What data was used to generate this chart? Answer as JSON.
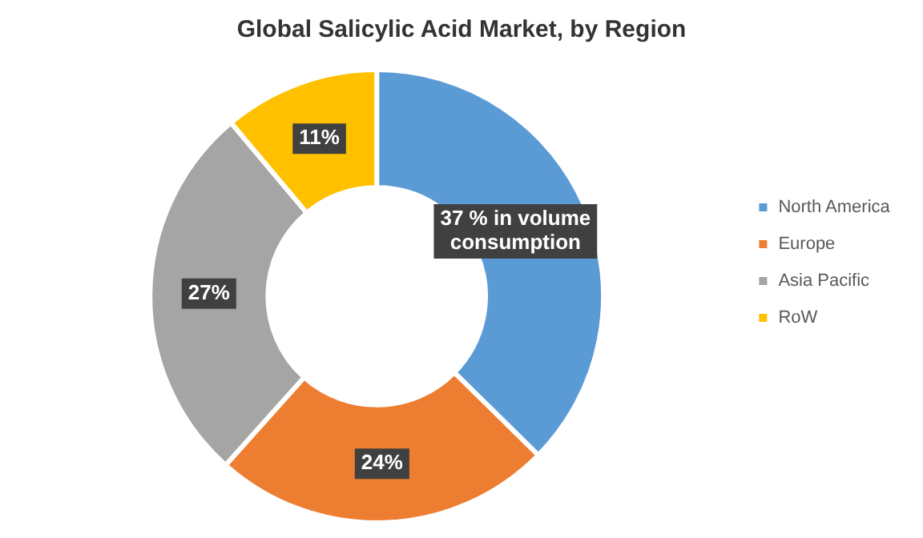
{
  "chart_data": {
    "type": "donut",
    "title": "Global Salicylic Acid Market, by Region",
    "categories": [
      "North America",
      "Europe",
      "Asia Pacific",
      "RoW"
    ],
    "values": [
      37,
      24,
      27,
      11
    ],
    "colors": [
      "#5b9bd5",
      "#ed7d31",
      "#a5a5a5",
      "#ffc000"
    ],
    "value_labels": [
      "37 % in volume consumption",
      "24%",
      "27%",
      "11%"
    ],
    "legend": "right"
  }
}
